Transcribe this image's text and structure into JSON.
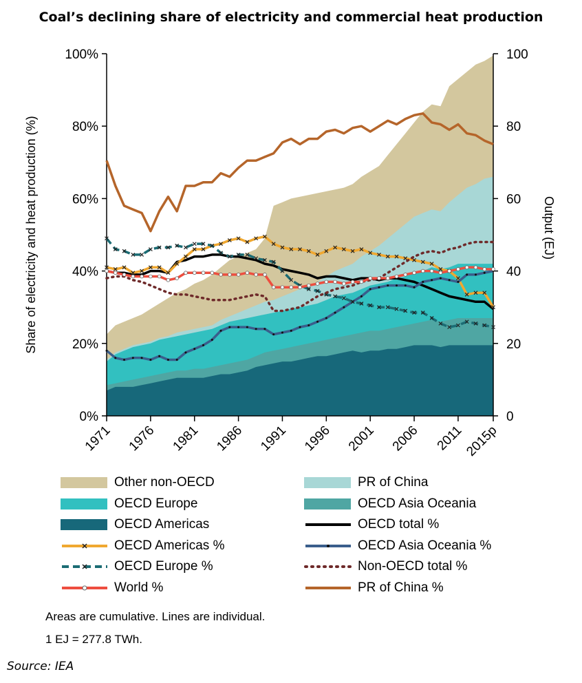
{
  "title": "Coal’s declining share of electricity and commercial heat production",
  "chart_data": {
    "type": "area",
    "x": [
      1971,
      1972,
      1973,
      1974,
      1975,
      1976,
      1977,
      1978,
      1979,
      1980,
      1981,
      1982,
      1983,
      1984,
      1985,
      1986,
      1987,
      1988,
      1989,
      1990,
      1991,
      1992,
      1993,
      1994,
      1995,
      1996,
      1997,
      1998,
      1999,
      2000,
      2001,
      2002,
      2003,
      2004,
      2005,
      2006,
      2007,
      2008,
      2009,
      2010,
      2011,
      2012,
      2013,
      2014,
      2015
    ],
    "x_tick_labels": [
      "1971",
      "1976",
      "1981",
      "1986",
      "1991",
      "1996",
      "2001",
      "2006",
      "2011",
      "2015p"
    ],
    "x_tick_years": [
      1971,
      1976,
      1981,
      1986,
      1991,
      1996,
      2001,
      2006,
      2011,
      2015
    ],
    "ylabel": "Share of electricity and heat production (%)",
    "y2label": "Output (EJ)",
    "ylim": [
      0,
      100
    ],
    "y2lim": [
      0,
      100
    ],
    "y_tick_labels": [
      "0%",
      "20%",
      "40%",
      "60%",
      "80%",
      "100%"
    ],
    "y2_tick_labels": [
      "0",
      "20",
      "40",
      "60",
      "80",
      "100"
    ],
    "grid": false,
    "areas": [
      {
        "name": "OECD Americas",
        "color": "#17687A",
        "values": [
          7,
          8,
          8,
          8,
          8.5,
          9,
          9.5,
          10,
          10.5,
          10.5,
          10.5,
          10.5,
          11,
          11.5,
          11.5,
          12,
          12.5,
          13.5,
          14,
          14.5,
          15,
          15,
          15.5,
          16,
          16.5,
          16.5,
          17,
          17.5,
          18,
          17.5,
          18,
          18,
          18.5,
          18.5,
          19,
          19.5,
          19.5,
          19.5,
          19,
          19.5,
          19.5,
          19.5,
          19.5,
          19.5,
          19.5
        ]
      },
      {
        "name": "OECD Asia Oceania",
        "color": "#4FA6A3",
        "values": [
          8.5,
          9,
          9.5,
          10,
          10.5,
          11,
          11.5,
          12,
          12.5,
          12.5,
          13,
          13,
          13.5,
          14,
          14.5,
          15,
          15.5,
          16.5,
          17.5,
          18,
          18.5,
          19,
          19.5,
          20,
          20.5,
          21,
          21.5,
          22,
          22.5,
          23,
          23.5,
          23.5,
          24,
          24.5,
          25,
          25.5,
          26,
          26.5,
          26,
          26.5,
          27,
          27,
          27,
          27,
          27
        ]
      },
      {
        "name": "OECD Europe",
        "color": "#32C0C0",
        "values": [
          15,
          17,
          18,
          19,
          19.5,
          20,
          21,
          21.5,
          22,
          22.5,
          23,
          23.5,
          24,
          25,
          26,
          26.5,
          27,
          27.5,
          28,
          28.5,
          29,
          29.5,
          30,
          30.5,
          31,
          32,
          33,
          33.5,
          34,
          35,
          36,
          36.5,
          37,
          38,
          38.5,
          39.5,
          40,
          41,
          40.5,
          41,
          42,
          42,
          42,
          42,
          42
        ]
      },
      {
        "name": "PR of China",
        "color": "#A8D7D6",
        "values": [
          15.5,
          17.5,
          18.5,
          19.5,
          20,
          20.5,
          21.5,
          22,
          23,
          23.5,
          24,
          24.5,
          25,
          26.5,
          27.5,
          28.5,
          29.5,
          30.5,
          31.5,
          32,
          33,
          34,
          35,
          36,
          37,
          38.5,
          40,
          41,
          42,
          44,
          45.5,
          47,
          49,
          51,
          53,
          55,
          56,
          57,
          56.5,
          59,
          61,
          63,
          64,
          65.5,
          66
        ]
      },
      {
        "name": "Other non-OECD",
        "color": "#D3C79E",
        "values": [
          22.5,
          25,
          26,
          27,
          28,
          29.5,
          31,
          32.5,
          34,
          35,
          36.5,
          37.5,
          39,
          41,
          43,
          44,
          45,
          46,
          49,
          58,
          59,
          60,
          60.5,
          61,
          61.5,
          62,
          62.5,
          63,
          64,
          66,
          67.5,
          69,
          72,
          75,
          78,
          81,
          84,
          86,
          85.5,
          91,
          93,
          95,
          97,
          98,
          99.5
        ]
      }
    ],
    "series": [
      {
        "name": "OECD total %",
        "color": "#000000",
        "style": "solid",
        "values": [
          40,
          39.5,
          39.5,
          39,
          39,
          40,
          40,
          39.5,
          42.5,
          43,
          44,
          44,
          44.5,
          44.5,
          44,
          44,
          43.5,
          43,
          42,
          41.5,
          40.5,
          40,
          39.5,
          39,
          38,
          38.5,
          38.5,
          38,
          37.5,
          38,
          38,
          37.5,
          38,
          38,
          37.5,
          37,
          36,
          35,
          34,
          33,
          32.5,
          32,
          31.5,
          31.5,
          29.5
        ]
      },
      {
        "name": "OECD Americas %",
        "color": "#F0A830",
        "style": "solid-x",
        "values": [
          41,
          40.5,
          41,
          39.5,
          40,
          41,
          41,
          39.5,
          42,
          44,
          46,
          46,
          47,
          47.5,
          48.5,
          49,
          48,
          49,
          49.5,
          47.5,
          46.5,
          46,
          46,
          45.5,
          44.5,
          45.5,
          46.5,
          46,
          45.5,
          46,
          45,
          44.5,
          44,
          44,
          43.5,
          43,
          42.5,
          42,
          40.5,
          40,
          38,
          33.5,
          34,
          34,
          30
        ]
      },
      {
        "name": "OECD Asia Oceania %",
        "color": "#3A5E8C",
        "style": "solid-dot",
        "values": [
          18,
          16,
          15.5,
          16,
          16,
          15.5,
          16.5,
          15.5,
          15.5,
          17.5,
          18.5,
          19.5,
          21,
          23.5,
          24.5,
          24.5,
          24.5,
          24,
          24,
          22.5,
          23,
          23.5,
          24.5,
          25,
          26,
          27,
          28.5,
          30,
          31.5,
          33,
          35,
          35.5,
          36,
          36,
          36,
          35.5,
          37,
          37.5,
          38,
          37.5,
          37,
          39,
          39,
          39.5,
          40
        ]
      },
      {
        "name": "OECD Europe %",
        "color": "#1B6C74",
        "style": "dashed-x",
        "values": [
          49,
          46,
          45.5,
          44.5,
          44.5,
          46,
          46.5,
          46.5,
          47,
          46.5,
          47.5,
          47.5,
          47,
          45,
          44,
          44.5,
          44.5,
          43.5,
          43,
          42.5,
          40,
          37.5,
          36,
          35,
          34.5,
          33.5,
          33,
          32.5,
          31.5,
          31,
          30.5,
          30,
          30,
          29.5,
          29,
          28.5,
          28.5,
          27,
          25.5,
          24.5,
          25,
          26,
          25.5,
          25,
          24.5
        ]
      },
      {
        "name": "Non-OECD total %",
        "color": "#6E2A2A",
        "style": "dotted",
        "values": [
          38,
          38.5,
          38.5,
          37.5,
          37,
          36,
          35,
          34,
          33.5,
          33.5,
          33,
          32.5,
          32,
          32,
          32,
          32.5,
          33,
          33.5,
          33,
          29,
          29,
          29.5,
          30,
          31.5,
          33,
          34,
          35,
          35.5,
          36,
          37,
          37.5,
          38,
          39.5,
          41,
          42.5,
          44,
          45,
          45.5,
          45,
          46,
          46.5,
          47.5,
          48,
          48,
          48
        ]
      },
      {
        "name": "World %",
        "color": "#EE4E3F",
        "style": "solid-circle",
        "values": [
          40,
          39.5,
          39,
          38.5,
          38.5,
          38.5,
          38.5,
          37.5,
          38,
          39.5,
          39.5,
          39.5,
          39.5,
          39,
          39,
          39,
          39.5,
          39,
          39,
          35.5,
          35.5,
          35.5,
          35.5,
          36,
          36.5,
          37,
          37,
          36.5,
          37,
          37,
          38,
          38,
          38,
          38.5,
          39,
          39.5,
          40,
          40,
          39.5,
          40,
          40.5,
          41,
          41,
          40.5,
          40.5
        ]
      },
      {
        "name": "PR of China %",
        "color": "#B5652A",
        "style": "solid",
        "values": [
          70.5,
          63.5,
          58,
          57,
          56,
          51,
          56.5,
          60.5,
          56.5,
          63.5,
          63.5,
          64.5,
          64.5,
          67,
          66,
          68.5,
          70.5,
          70.5,
          71.5,
          72.5,
          75.5,
          76.5,
          75,
          76.5,
          76.5,
          78.5,
          79,
          78,
          79.5,
          80,
          78.5,
          80,
          81.5,
          80.5,
          82,
          83,
          83.5,
          81,
          80.5,
          79,
          80.5,
          78,
          77.5,
          76,
          75
        ]
      }
    ],
    "legend": {
      "left": [
        "Other non-OECD",
        "OECD Europe",
        "OECD Americas",
        "OECD Americas %",
        "OECD Europe %",
        "World %"
      ],
      "right": [
        "PR of China",
        "OECD Asia Oceania",
        "OECD total %",
        "OECD Asia Oceania %",
        "Non-OECD total %",
        "PR of China %"
      ]
    }
  },
  "notes": {
    "line1": "Areas are cumulative. Lines are individual.",
    "line2": "1 EJ = 277.8 TWh."
  },
  "source": "Source: IEA"
}
